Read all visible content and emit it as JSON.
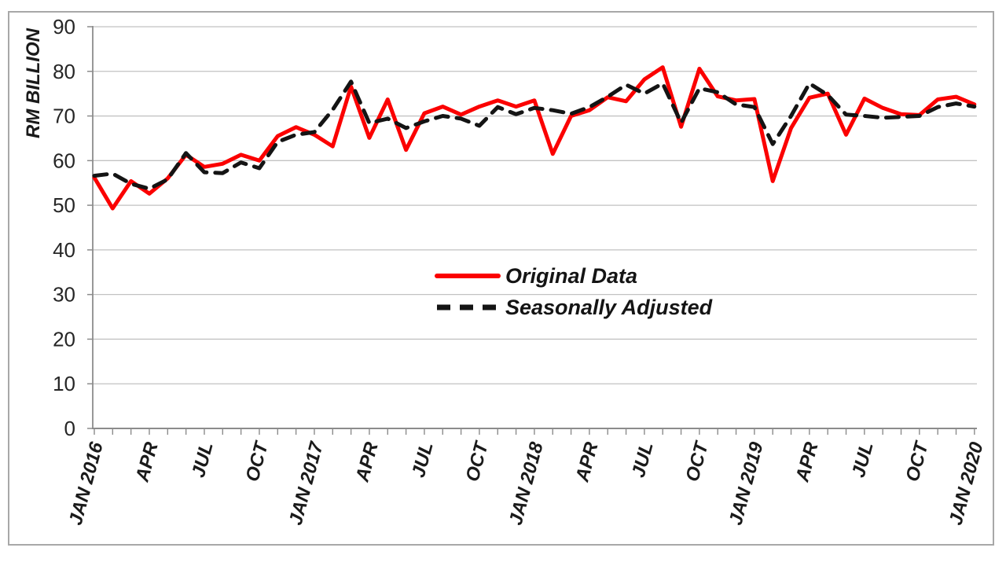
{
  "chart_data": {
    "type": "line",
    "title": "",
    "ylabel": "RM BILLION",
    "xlabel": "",
    "ylim": [
      0,
      90
    ],
    "y_ticks": [
      0,
      10,
      20,
      30,
      40,
      50,
      60,
      70,
      80,
      90
    ],
    "grid": "horizontal",
    "legend_position": "center",
    "n_points": 49,
    "x_tick_labels": [
      {
        "index": 0,
        "label": "JAN 2016"
      },
      {
        "index": 3,
        "label": "APR"
      },
      {
        "index": 6,
        "label": "JUL"
      },
      {
        "index": 9,
        "label": "OCT"
      },
      {
        "index": 12,
        "label": "JAN 2017"
      },
      {
        "index": 15,
        "label": "APR"
      },
      {
        "index": 18,
        "label": "JUL"
      },
      {
        "index": 21,
        "label": "OCT"
      },
      {
        "index": 24,
        "label": "JAN 2018"
      },
      {
        "index": 27,
        "label": "APR"
      },
      {
        "index": 30,
        "label": "JUL"
      },
      {
        "index": 33,
        "label": "OCT"
      },
      {
        "index": 36,
        "label": "JAN 2019"
      },
      {
        "index": 39,
        "label": "APR"
      },
      {
        "index": 42,
        "label": "JUL"
      },
      {
        "index": 45,
        "label": "OCT"
      },
      {
        "index": 48,
        "label": "JAN 2020"
      }
    ],
    "series": [
      {
        "name": "Original Data",
        "color": "#fb0000",
        "line_style": "solid",
        "values": [
          56.2,
          49.3,
          55.4,
          52.6,
          56.0,
          61.3,
          58.6,
          59.3,
          61.3,
          60.0,
          65.5,
          67.5,
          65.8,
          63.2,
          76.6,
          65.1,
          73.7,
          62.4,
          70.6,
          72.1,
          70.3,
          72.1,
          73.5,
          72.1,
          73.5,
          61.5,
          70.0,
          71.3,
          74.2,
          73.3,
          78.2,
          80.9,
          67.6,
          80.6,
          74.4,
          73.5,
          73.8,
          55.4,
          67.3,
          74.1,
          75.0,
          65.8,
          73.9,
          71.8,
          70.4,
          70.2,
          73.7,
          74.3,
          72.6
        ]
      },
      {
        "name": "Seasonally Adjusted",
        "color": "#141414",
        "line_style": "dashed",
        "values": [
          56.6,
          57.1,
          54.8,
          53.7,
          55.8,
          61.7,
          57.4,
          57.2,
          59.6,
          58.3,
          64.2,
          65.8,
          66.4,
          71.4,
          77.7,
          68.4,
          69.4,
          67.3,
          68.8,
          70.0,
          69.4,
          67.8,
          72.0,
          70.4,
          71.8,
          71.3,
          70.5,
          72.0,
          74.3,
          77.0,
          75.0,
          77.3,
          68.5,
          76.2,
          75.3,
          72.6,
          72.0,
          63.7,
          70.0,
          77.3,
          74.7,
          70.3,
          70.0,
          69.6,
          69.8,
          70.0,
          72.0,
          72.8,
          72.1
        ]
      }
    ]
  },
  "style": {
    "gridline_color": "#c2c2c2",
    "axis_color": "#8c8c8c",
    "border_color": "#a8a8a8",
    "background": "#ffffff"
  }
}
